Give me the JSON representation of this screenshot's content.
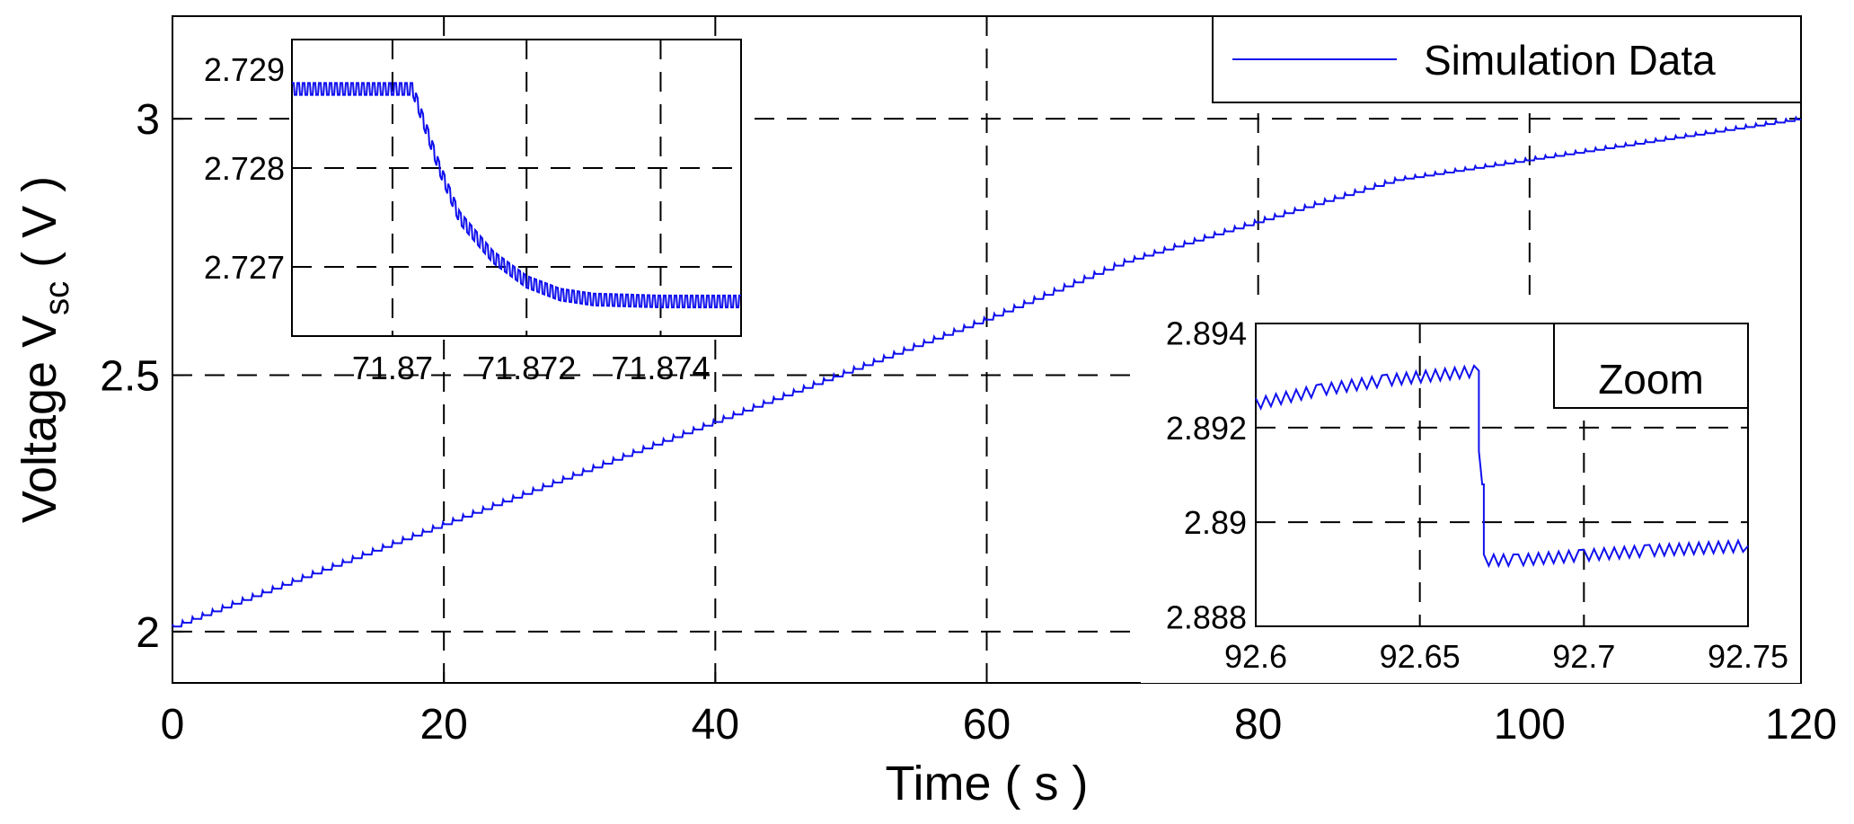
{
  "chart_data": [
    {
      "id": "main",
      "type": "line",
      "xlabel": "Time ( s )",
      "ylabel_parts": [
        "Voltage V",
        "sc",
        " ( V )"
      ],
      "xlim": [
        0,
        120
      ],
      "ylim": [
        1.9,
        3.2
      ],
      "xticks": [
        0,
        20,
        40,
        60,
        80,
        100,
        120
      ],
      "yticks": [
        2,
        2.5,
        3
      ],
      "ytick_labels": [
        "2",
        "2.5",
        "3"
      ],
      "grid": true,
      "legend": {
        "position": "top-right",
        "entries": [
          "Simulation Data"
        ]
      },
      "series": [
        {
          "name": "Simulation Data",
          "color": "#1010ee",
          "x": [
            0,
            10,
            20,
            30,
            40,
            50,
            60,
            70,
            80,
            90,
            95,
            100,
            110,
            120
          ],
          "y": [
            2.01,
            2.11,
            2.21,
            2.31,
            2.41,
            2.51,
            2.61,
            2.72,
            2.8,
            2.88,
            2.9,
            2.92,
            2.96,
            3.0
          ]
        }
      ]
    },
    {
      "id": "inset-top-left",
      "type": "line",
      "xlim": [
        71.8685,
        71.8752
      ],
      "ylim": [
        2.7263,
        2.7293
      ],
      "xticks": [
        71.87,
        71.872,
        71.874
      ],
      "xtick_labels": [
        "71.87",
        "71.872",
        "71.874"
      ],
      "yticks": [
        2.727,
        2.728,
        2.729
      ],
      "ytick_labels": [
        "2.727",
        "2.728",
        "2.729"
      ],
      "grid": true,
      "series": [
        {
          "name": "",
          "x": [
            71.8685,
            71.8703,
            71.8707,
            71.871,
            71.8715,
            71.872,
            71.8725,
            71.873,
            71.874,
            71.8752
          ],
          "y": [
            2.7288,
            2.7288,
            2.728,
            2.7275,
            2.7271,
            2.72685,
            2.72672,
            2.72667,
            2.72665,
            2.72665
          ]
        }
      ]
    },
    {
      "id": "inset-zoom",
      "type": "line",
      "xlim": [
        92.6,
        92.75
      ],
      "ylim": [
        2.8878,
        2.8942
      ],
      "xticks": [
        92.6,
        92.65,
        92.7,
        92.75
      ],
      "xtick_labels": [
        "92.6",
        "92.65",
        "92.7",
        "92.75"
      ],
      "yticks": [
        2.888,
        2.89,
        2.892,
        2.894
      ],
      "ytick_labels": [
        "2.888",
        "2.89",
        "2.892",
        "2.894"
      ],
      "grid": true,
      "legend": {
        "position": "top-right",
        "entries": [
          "Zoom"
        ]
      },
      "series": [
        {
          "name": "",
          "x": [
            92.6,
            92.62,
            92.64,
            92.668,
            92.668,
            92.669,
            92.6695,
            92.6695,
            92.68,
            92.7,
            92.72,
            92.75
          ],
          "y": [
            2.8925,
            2.8928,
            2.893,
            2.8932,
            2.8915,
            2.8908,
            2.8908,
            2.8892,
            2.8892,
            2.8893,
            2.8894,
            2.8895
          ]
        }
      ]
    }
  ]
}
